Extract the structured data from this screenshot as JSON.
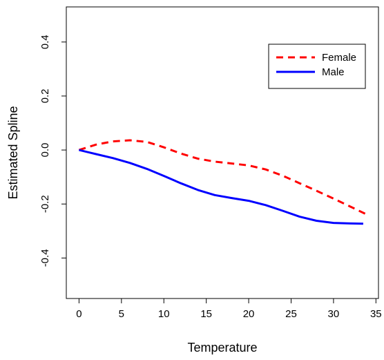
{
  "chart_data": {
    "type": "line",
    "xlabel": "Temperature",
    "ylabel": "Estimated Spline",
    "xlim": [
      -1.5,
      35.3
    ],
    "ylim": [
      -0.55,
      0.53
    ],
    "x_ticks": [
      0,
      5,
      10,
      15,
      20,
      25,
      30,
      35
    ],
    "y_ticks": [
      -0.4,
      -0.2,
      0.0,
      0.2,
      0.4
    ],
    "x_tick_labels": [
      "0",
      "5",
      "10",
      "15",
      "20",
      "25",
      "30",
      "35"
    ],
    "y_tick_labels": [
      "-0.4",
      "-0.2",
      "0.0",
      "0.2",
      "0.4"
    ],
    "grid": false,
    "legend_position": "top-right",
    "series": [
      {
        "name": "Female",
        "color": "#ff0000",
        "style": "dashed",
        "x": [
          0,
          2,
          4,
          6,
          8,
          10,
          12,
          14,
          16,
          18,
          20,
          22,
          24,
          26,
          28,
          30,
          32,
          34
        ],
        "y": [
          0.0,
          0.02,
          0.032,
          0.036,
          0.03,
          0.01,
          -0.013,
          -0.032,
          -0.043,
          -0.05,
          -0.057,
          -0.072,
          -0.095,
          -0.123,
          -0.151,
          -0.18,
          -0.21,
          -0.24
        ]
      },
      {
        "name": "Male",
        "color": "#0000ff",
        "style": "solid",
        "x": [
          0,
          2,
          4,
          6,
          8,
          10,
          12,
          14,
          16,
          18,
          20,
          22,
          24,
          26,
          28,
          30,
          32,
          33.5
        ],
        "y": [
          0.0,
          -0.015,
          -0.03,
          -0.048,
          -0.07,
          -0.096,
          -0.123,
          -0.148,
          -0.167,
          -0.178,
          -0.188,
          -0.204,
          -0.225,
          -0.247,
          -0.262,
          -0.27,
          -0.272,
          -0.273
        ]
      }
    ]
  }
}
